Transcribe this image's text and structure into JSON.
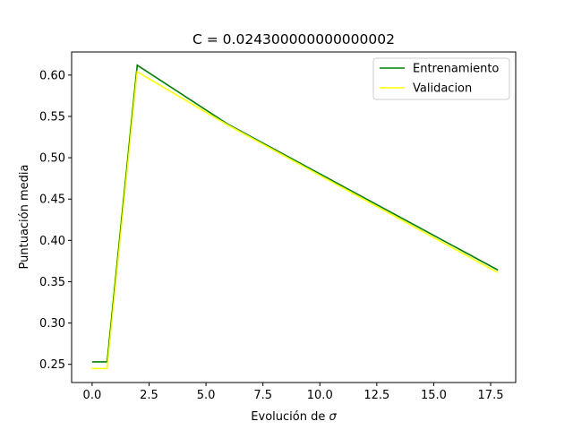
{
  "chart_data": {
    "type": "line",
    "title": "C = 0.024300000000000002",
    "xlabel_prefix": "Evolución de ",
    "xlabel_symbol": "σ",
    "ylabel": "Puntuación media",
    "xlim": [
      -0.9,
      18.6
    ],
    "ylim": [
      0.228,
      0.628
    ],
    "xticks": [
      0.0,
      2.5,
      5.0,
      7.5,
      10.0,
      12.5,
      15.0,
      17.5
    ],
    "xtick_labels": [
      "0.0",
      "2.5",
      "5.0",
      "7.5",
      "10.0",
      "12.5",
      "15.0",
      "17.5"
    ],
    "yticks": [
      0.25,
      0.3,
      0.35,
      0.4,
      0.45,
      0.5,
      0.55,
      0.6
    ],
    "ytick_labels": [
      "0.25",
      "0.30",
      "0.35",
      "0.40",
      "0.45",
      "0.50",
      "0.55",
      "0.60"
    ],
    "legend_position": "top-right",
    "grid": false,
    "series": [
      {
        "name": "Entrenamiento",
        "color": "#008000",
        "x": [
          0.0,
          0.66,
          1.98,
          5.94,
          17.82
        ],
        "y": [
          0.253,
          0.253,
          0.612,
          0.541,
          0.364
        ]
      },
      {
        "name": "Validacion",
        "color": "#ffff00",
        "x": [
          0.0,
          0.66,
          1.98,
          5.94,
          17.82
        ],
        "y": [
          0.245,
          0.245,
          0.604,
          0.54,
          0.361
        ]
      }
    ]
  }
}
